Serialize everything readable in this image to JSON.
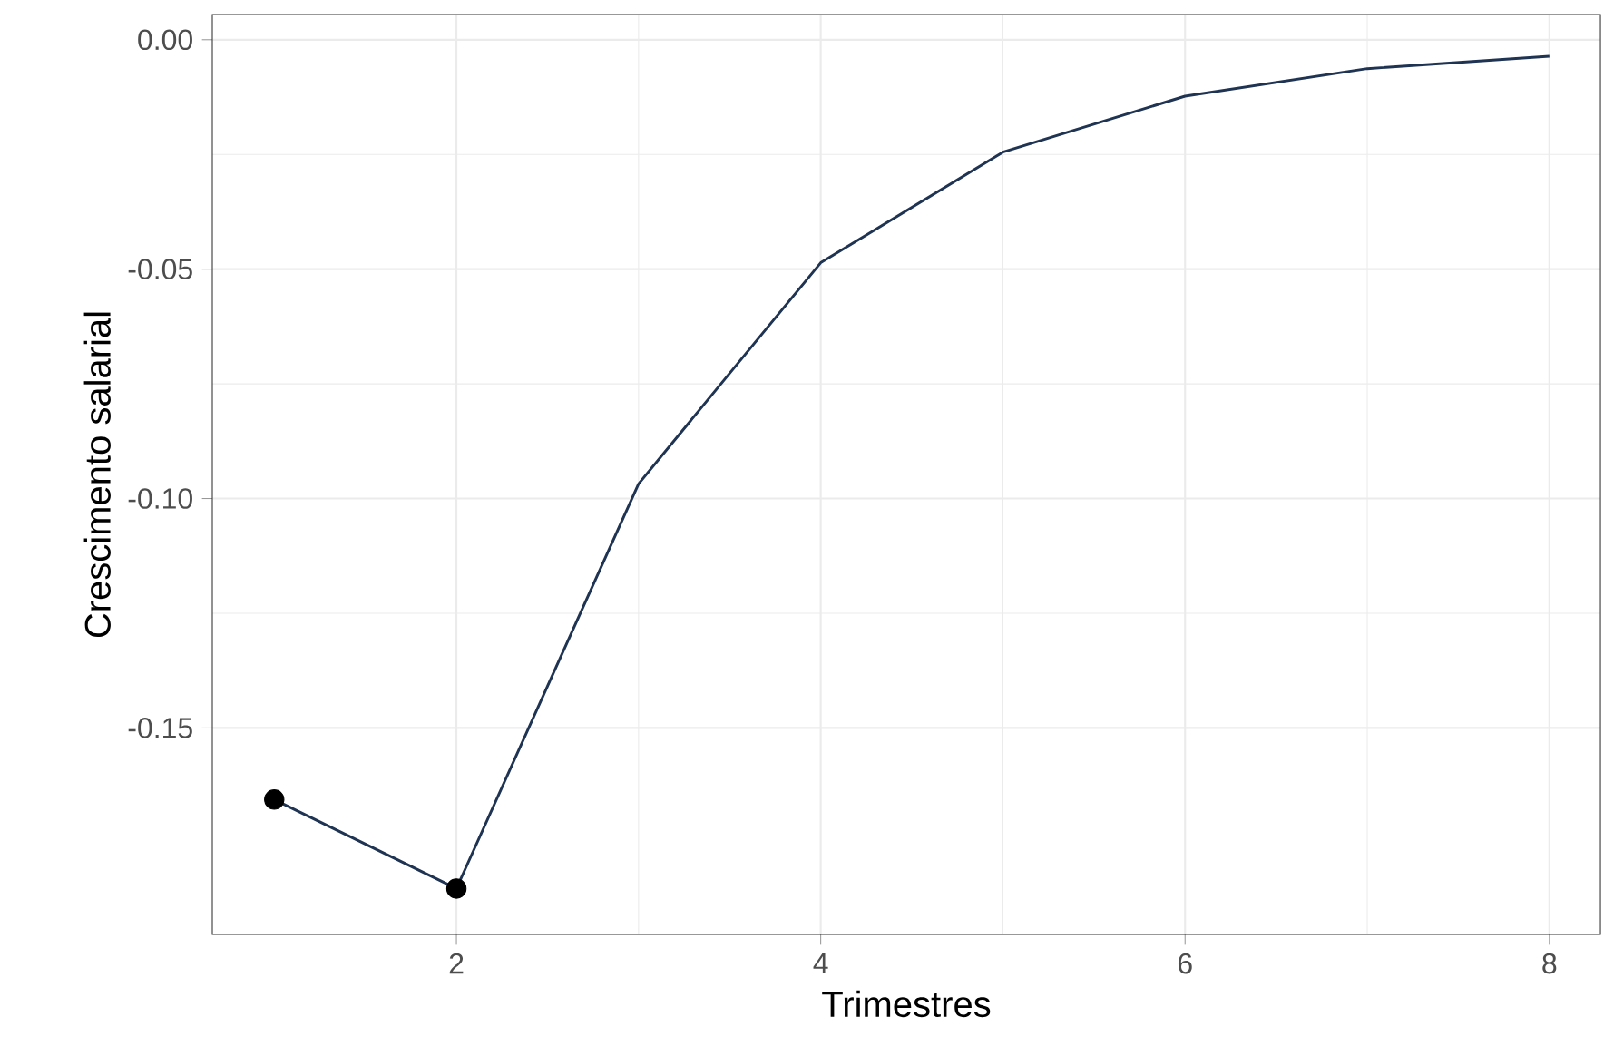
{
  "chart_data": {
    "type": "line",
    "xlabel": "Trimestres",
    "ylabel": "Crescimento salarial",
    "x": [
      1,
      2,
      3,
      4,
      5,
      6,
      7,
      8
    ],
    "series": [
      {
        "color": "#1f3352",
        "values": [
          -0.1656,
          -0.185,
          -0.0968,
          -0.0486,
          -0.0245,
          -0.0123,
          -0.0063,
          -0.0036
        ]
      },
      {
        "type": "scatter",
        "marker": "circle",
        "color": "#000000",
        "x": [
          1,
          2
        ],
        "values": [
          -0.1656,
          -0.185
        ]
      }
    ],
    "xlim": [
      0.66,
      8.28
    ],
    "ylim": [
      -0.195,
      0.0055
    ],
    "xticks": [
      2,
      4,
      6,
      8
    ],
    "yticks": [
      {
        "value": 0,
        "label": "0.00"
      },
      {
        "value": -0.05,
        "label": "-0.05"
      },
      {
        "value": -0.1,
        "label": "-0.10"
      },
      {
        "value": -0.15,
        "label": "-0.15"
      }
    ],
    "grid": true
  }
}
